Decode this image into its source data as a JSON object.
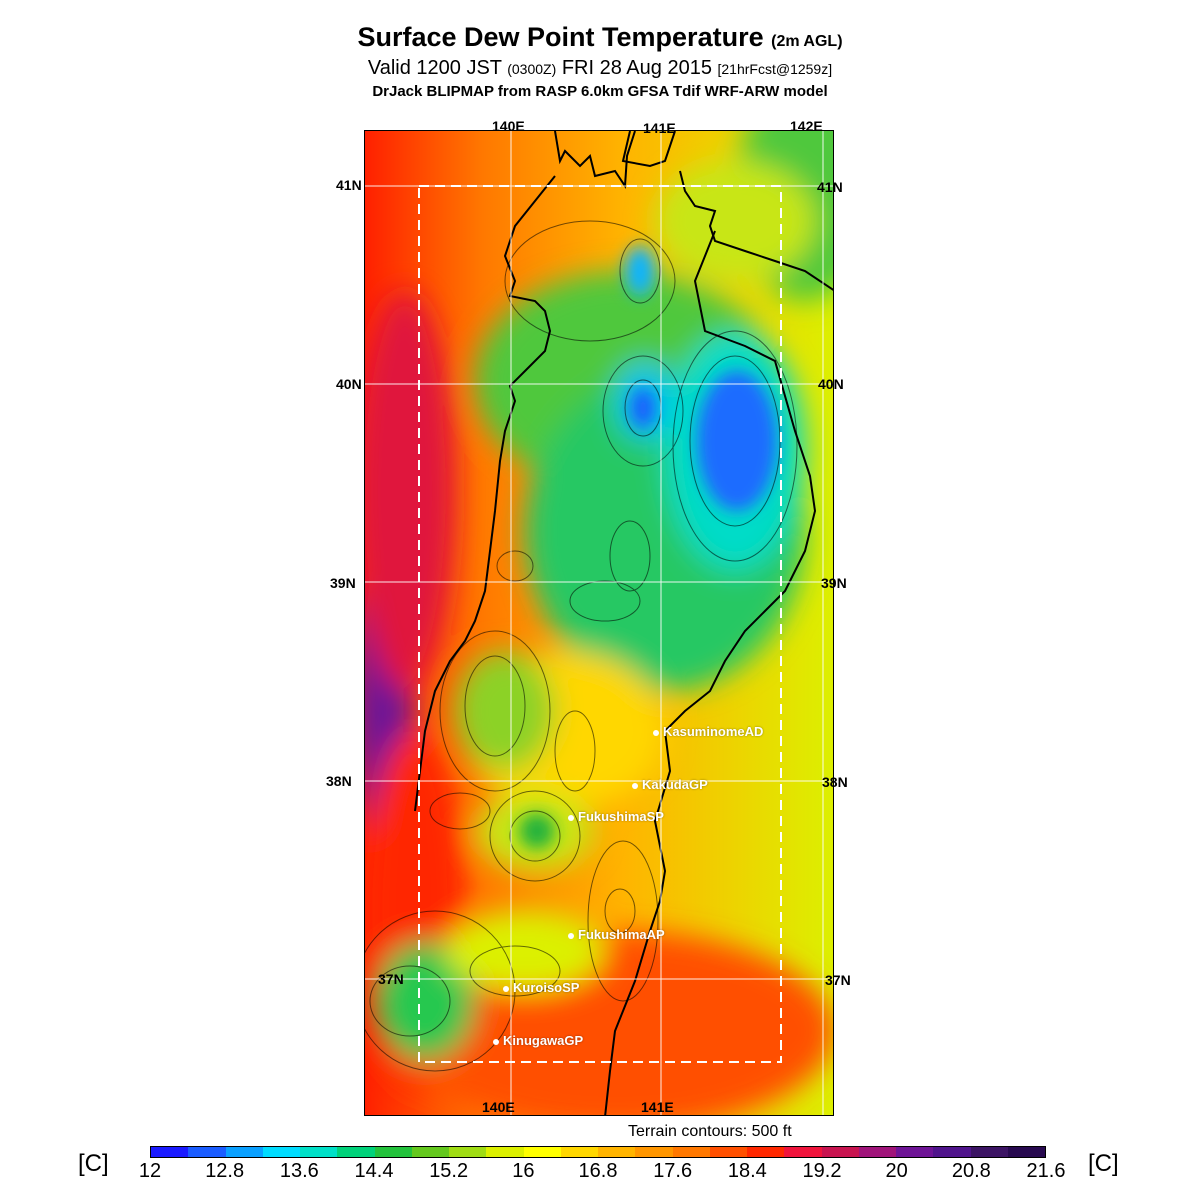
{
  "title": {
    "main": "Surface Dew Point Temperature",
    "main_suffix": "(2m AGL)",
    "valid_prefix": "Valid 1200 JST",
    "valid_utc": "(0300Z)",
    "valid_date": "FRI 28 Aug 2015",
    "forecast": "[21hrFcst@1259z]",
    "model": "DrJack BLIPMAP from RASP 6.0km GFSA Tdif WRF-ARW model"
  },
  "map": {
    "lon_labels_top": [
      "140E",
      "141E",
      "142E"
    ],
    "lon_labels_bottom": [
      "140E",
      "141E"
    ],
    "lat_labels": [
      "41N",
      "40N",
      "39N",
      "38N",
      "37N"
    ],
    "stations": [
      {
        "name": "KasuminomeAD"
      },
      {
        "name": "KakudaGP"
      },
      {
        "name": "FukushimaSP"
      },
      {
        "name": "FukushimaAP"
      },
      {
        "name": "KuroisoSP"
      },
      {
        "name": "KinugawaGP"
      }
    ],
    "terrain_note": "Terrain contours: 500 ft"
  },
  "legend": {
    "unit_left": "[C]",
    "unit_right": "[C]",
    "ticks": [
      "12",
      "12.8",
      "13.6",
      "14.4",
      "15.2",
      "16",
      "16.8",
      "17.6",
      "18.4",
      "19.2",
      "20",
      "20.8",
      "21.6"
    ],
    "colors": [
      "#1a1aff",
      "#1a5cff",
      "#0aa0ff",
      "#00dcff",
      "#00e0c8",
      "#00d27a",
      "#23c23c",
      "#64c81e",
      "#a0dc14",
      "#dcf000",
      "#ffff00",
      "#ffd700",
      "#ffb400",
      "#ff9600",
      "#ff7800",
      "#ff5000",
      "#ff2800",
      "#f0143c",
      "#c81450",
      "#a0147a",
      "#6e1496",
      "#50148c",
      "#3c1464",
      "#280a50"
    ]
  }
}
